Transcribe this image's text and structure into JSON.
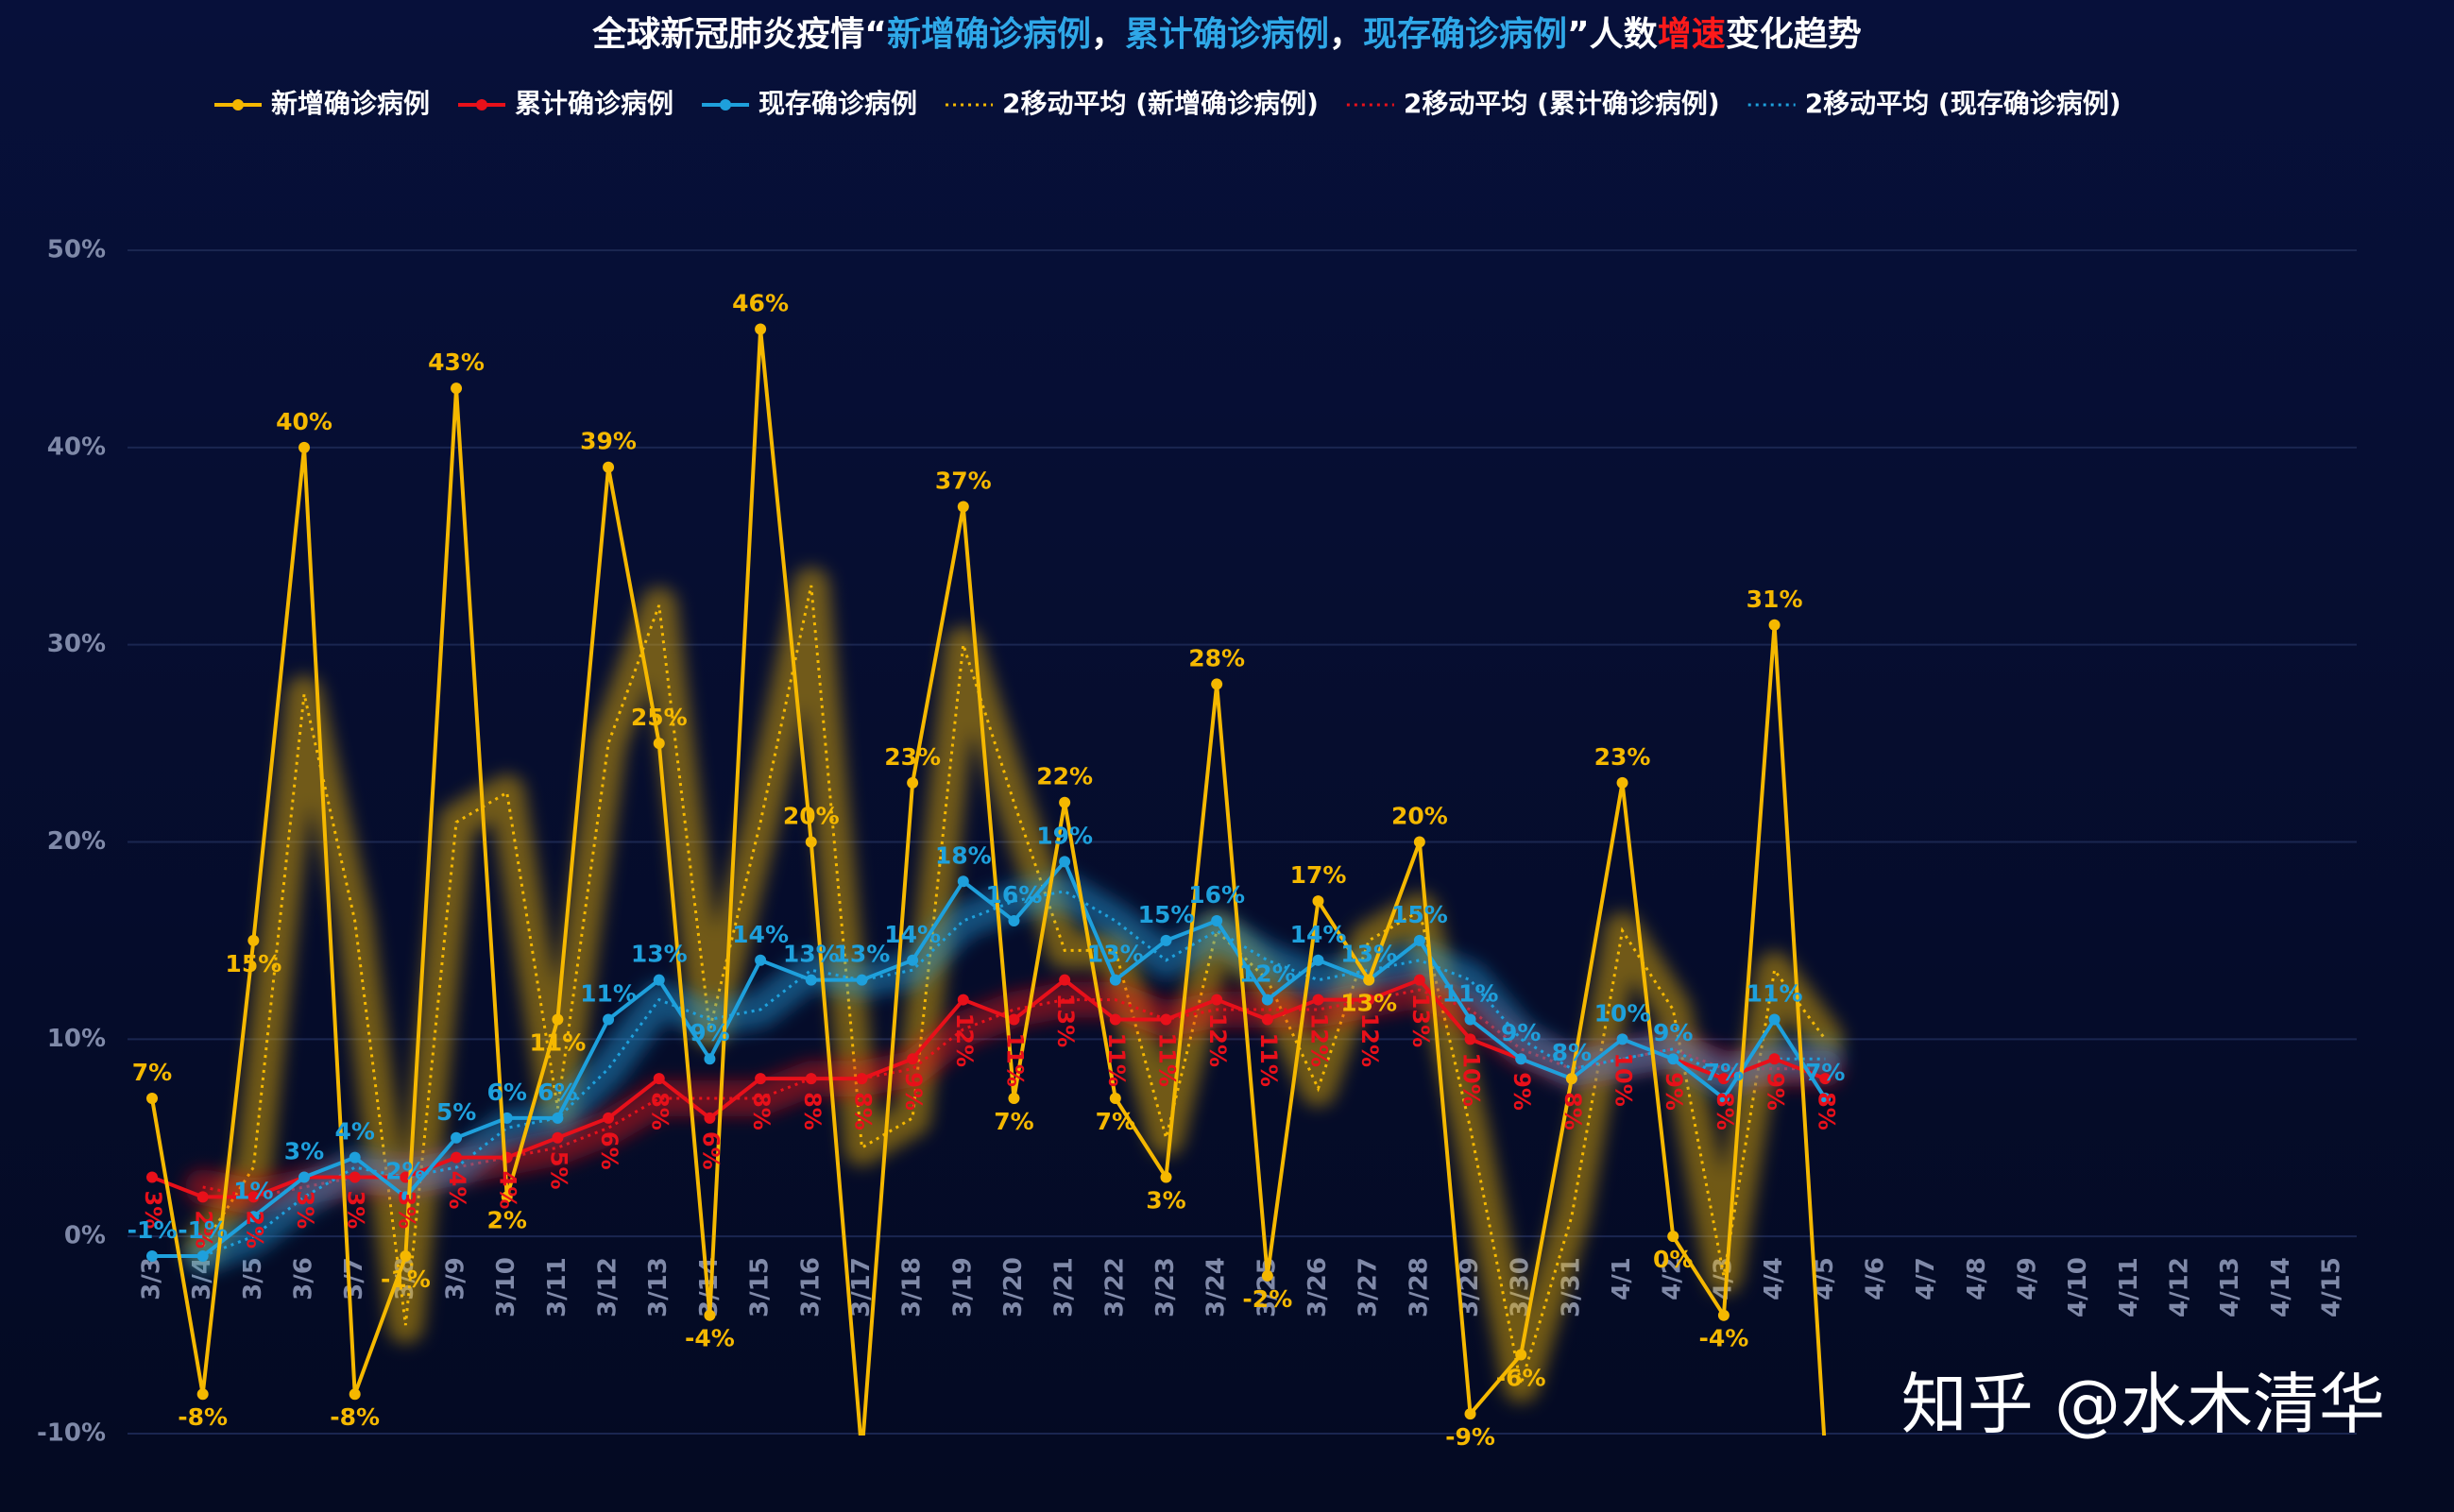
{
  "chart_data": {
    "type": "line",
    "title_parts": [
      {
        "text": "全球新冠肺炎疫情“",
        "color": "#ffffff"
      },
      {
        "text": "新增确诊病例",
        "color": "#2fa8e8"
      },
      {
        "text": "，",
        "color": "#ffffff"
      },
      {
        "text": "累计确诊病例",
        "color": "#2fa8e8"
      },
      {
        "text": "，",
        "color": "#ffffff"
      },
      {
        "text": "现存确诊病例",
        "color": "#2fa8e8"
      },
      {
        "text": "”人数",
        "color": "#ffffff"
      },
      {
        "text": "增速",
        "color": "#ff1a1a"
      },
      {
        "text": "变化趋势",
        "color": "#ffffff"
      }
    ],
    "watermark": "知乎 @水木清华",
    "categories": [
      "3/3",
      "3/4",
      "3/5",
      "3/6",
      "3/7",
      "3/8",
      "3/9",
      "3/10",
      "3/11",
      "3/12",
      "3/13",
      "3/14",
      "3/15",
      "3/16",
      "3/17",
      "3/18",
      "3/19",
      "3/20",
      "3/21",
      "3/22",
      "3/23",
      "3/24",
      "3/25",
      "3/26",
      "3/27",
      "3/28",
      "3/29",
      "3/30",
      "3/31",
      "4/1",
      "4/2",
      "4/3",
      "4/4",
      "4/5",
      "4/6",
      "4/7",
      "4/8",
      "4/9",
      "4/10",
      "4/11",
      "4/12",
      "4/13",
      "4/14",
      "4/15"
    ],
    "ylim": [
      -10,
      50
    ],
    "yticks": [
      {
        "value": -10,
        "label": "-10%"
      },
      {
        "value": 0,
        "label": "0%"
      },
      {
        "value": 10,
        "label": "10%"
      },
      {
        "value": 20,
        "label": "20%"
      },
      {
        "value": 30,
        "label": "30%"
      },
      {
        "value": 40,
        "label": "40%"
      },
      {
        "value": 50,
        "label": "50%"
      }
    ],
    "grid": true,
    "series": [
      {
        "name": "新增确诊病例",
        "color": "#f5b800",
        "style": "solid",
        "values": [
          7,
          -8,
          15,
          40,
          -8,
          -1,
          43,
          2,
          11,
          39,
          25,
          -4,
          46,
          20,
          -11,
          23,
          37,
          7,
          22,
          7,
          3,
          28,
          -2,
          17,
          13,
          20,
          -9,
          -6,
          8,
          23,
          0,
          -4,
          31,
          -11,
          null,
          null,
          null,
          null,
          null,
          null,
          null,
          null,
          null,
          null
        ],
        "value_labels": [
          "7%",
          "-8%",
          "15%",
          "40%",
          "-8%",
          "-1%",
          "43%",
          "2%",
          "11%",
          "39%",
          "25%",
          "-4%",
          "46%",
          "20%",
          null,
          "23%",
          "37%",
          "7%",
          "22%",
          "7%",
          "3%",
          "28%",
          "-2%",
          "17%",
          "13%",
          "20%",
          "-9%",
          "-6%",
          null,
          "23%",
          "0%",
          "-4%",
          "31%",
          null,
          null,
          null,
          null,
          null,
          null,
          null,
          null,
          null,
          null,
          null
        ]
      },
      {
        "name": "累计确诊病例",
        "color": "#e8101a",
        "style": "solid",
        "values": [
          3,
          2,
          2,
          3,
          3,
          3,
          4,
          4,
          5,
          6,
          8,
          6,
          8,
          8,
          8,
          9,
          12,
          11,
          13,
          11,
          11,
          12,
          11,
          12,
          12,
          13,
          10,
          9,
          8,
          10,
          9,
          8,
          9,
          8,
          null,
          null,
          null,
          null,
          null,
          null,
          null,
          null,
          null,
          null
        ],
        "value_labels": [
          "3%",
          "2%",
          "2%",
          "3%",
          "3%",
          "3%",
          "4%",
          "4%",
          "5%",
          "6%",
          "8%",
          "6%",
          "8%",
          "8%",
          "8%",
          "9%",
          "12%",
          "11%",
          "13%",
          "11%",
          "11%",
          "12%",
          "11%",
          "12%",
          "12%",
          "13%",
          "10%",
          "9%",
          "8%",
          "10%",
          "9%",
          "8%",
          "9%",
          "8%",
          null,
          null,
          null,
          null,
          null,
          null,
          null,
          null,
          null,
          null
        ]
      },
      {
        "name": "现存确诊病例",
        "color": "#1ea0dc",
        "style": "solid",
        "values": [
          -1,
          -1,
          1,
          3,
          4,
          2,
          5,
          6,
          6,
          11,
          13,
          9,
          14,
          13,
          13,
          14,
          18,
          16,
          19,
          13,
          15,
          16,
          12,
          14,
          13,
          15,
          11,
          9,
          8,
          10,
          9,
          7,
          11,
          7,
          null,
          null,
          null,
          null,
          null,
          null,
          null,
          null,
          null,
          null
        ],
        "value_labels": [
          "-1%",
          "-1%",
          "1%",
          "3%",
          "4%",
          "2%",
          "5%",
          "6%",
          "6%",
          "11%",
          "13%",
          "9%",
          "14%",
          "13%",
          "13%",
          "14%",
          "18%",
          "16%",
          "19%",
          "13%",
          "15%",
          "16%",
          "12%",
          "14%",
          "13%",
          "15%",
          "11%",
          "9%",
          "8%",
          "10%",
          "9%",
          "7%",
          "11%",
          "7%",
          null,
          null,
          null,
          null,
          null,
          null,
          null,
          null,
          null,
          null
        ]
      },
      {
        "name": "2移动平均 (新增确诊病例)",
        "color": "#f5b800",
        "style": "dotted",
        "values": [
          null,
          -0.5,
          3.5,
          27.5,
          16,
          -4.5,
          21,
          22.5,
          6.5,
          25,
          32,
          10.5,
          21,
          33,
          4.5,
          6,
          30,
          22,
          14.5,
          14.5,
          5,
          15.5,
          13,
          7.5,
          15,
          16.5,
          5.5,
          -7.5,
          1,
          15.5,
          11.5,
          -2,
          13.5,
          10,
          null,
          null,
          null,
          null,
          null,
          null,
          null,
          null,
          null,
          null
        ]
      },
      {
        "name": "2移动平均 (累计确诊病例)",
        "color": "#e8101a",
        "style": "dotted",
        "values": [
          null,
          2.5,
          2,
          2.5,
          3,
          3,
          3.5,
          4,
          4.5,
          5.5,
          7,
          7,
          7,
          8,
          8,
          8.5,
          10.5,
          11.5,
          12,
          12,
          11,
          11.5,
          11.5,
          11.5,
          12,
          12.5,
          11.5,
          9.5,
          8.5,
          9,
          9.5,
          8.5,
          8.5,
          8.5,
          null,
          null,
          null,
          null,
          null,
          null,
          null,
          null,
          null,
          null
        ]
      },
      {
        "name": "2移动平均 (现存确诊病例)",
        "color": "#1ea0dc",
        "style": "dotted",
        "values": [
          null,
          -1,
          0,
          2,
          3.5,
          3,
          3.5,
          5.5,
          6,
          8.5,
          12,
          11,
          11.5,
          13.5,
          13,
          13.5,
          16,
          17,
          17.5,
          16,
          14,
          15.5,
          14,
          13,
          13.5,
          14,
          13,
          10,
          8.5,
          9,
          9.5,
          8,
          9,
          9,
          null,
          null,
          null,
          null,
          null,
          null,
          null,
          null,
          null,
          null
        ]
      }
    ]
  }
}
